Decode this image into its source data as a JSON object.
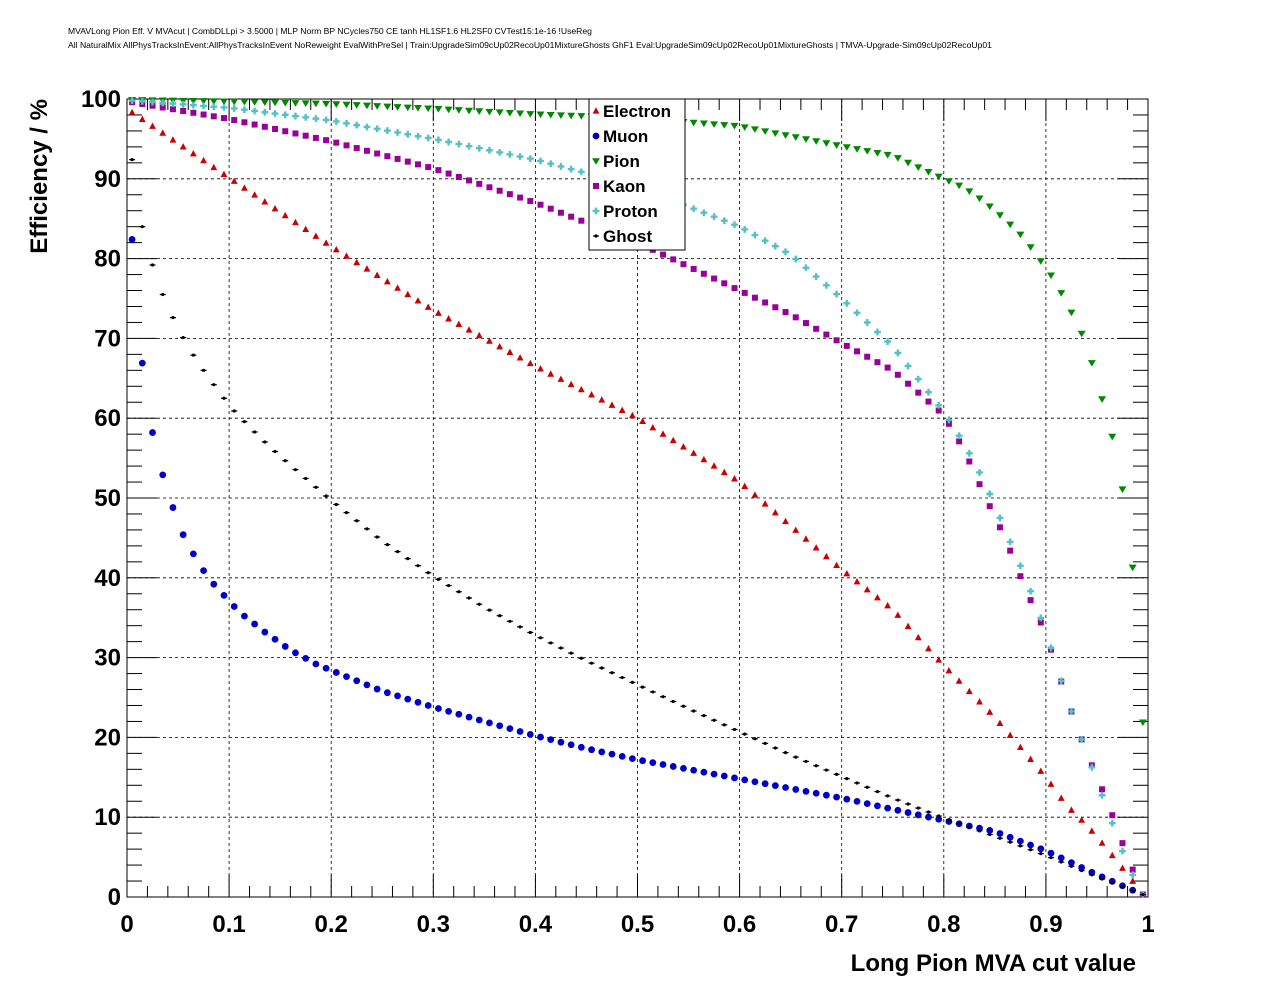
{
  "title_lines": [
    "MVAVLong Pion Eff. V MVAcut | CombDLLpi > 3.5000 | MLP Norm BP NCycles750 CE tanh HL1SF1.6 HL2SF0 CVTest15:1e-16 !UseReg",
    "All NaturalMix AllPhysTracksInEvent:AllPhysTracksInEvent NoReweight EvalWithPreSel | Train:UpgradeSim09cUp02RecoUp01MixtureGhosts GhF1 Eval:UpgradeSim09cUp02RecoUp01MixtureGhosts | TMVA-Upgrade-Sim09cUp02RecoUp01"
  ],
  "chart_data": {
    "type": "scatter",
    "xlabel": "Long Pion MVA cut value",
    "ylabel": "Efficiency / %",
    "xlim": [
      0,
      1
    ],
    "ylim": [
      0,
      100
    ],
    "x_ticks": [
      "0",
      "0.1",
      "0.2",
      "0.3",
      "0.4",
      "0.5",
      "0.6",
      "0.7",
      "0.8",
      "0.9",
      "1"
    ],
    "y_ticks": [
      "0",
      "10",
      "20",
      "30",
      "40",
      "50",
      "60",
      "70",
      "80",
      "90",
      "100"
    ],
    "grid": true,
    "legend_position": "top-center",
    "series": [
      {
        "name": "Electron",
        "color": "#cc0000",
        "marker": "triangle-up",
        "points": [
          [
            0.005,
            98.3
          ],
          [
            0.2,
            81.5
          ],
          [
            0.3,
            73.5
          ],
          [
            0.4,
            66.5
          ],
          [
            0.5,
            60.0
          ],
          [
            0.6,
            52.0
          ],
          [
            0.7,
            41.0
          ],
          [
            0.75,
            36.0
          ],
          [
            0.8,
            29.0
          ],
          [
            0.85,
            22.5
          ],
          [
            0.88,
            18.0
          ],
          [
            0.9,
            15.0
          ],
          [
            0.92,
            11.5
          ],
          [
            0.94,
            9.0
          ],
          [
            0.96,
            6.0
          ],
          [
            0.98,
            2.8
          ],
          [
            0.995,
            0.3
          ]
        ]
      },
      {
        "name": "Muon",
        "color": "#0000cc",
        "marker": "circle",
        "points": [
          [
            0.005,
            82.4
          ],
          [
            0.015,
            66.9
          ],
          [
            0.025,
            58.2
          ],
          [
            0.035,
            52.9
          ],
          [
            0.045,
            48.8
          ],
          [
            0.055,
            45.4
          ],
          [
            0.065,
            43.0
          ],
          [
            0.075,
            40.9
          ],
          [
            0.085,
            39.2
          ],
          [
            0.095,
            37.8
          ],
          [
            0.105,
            36.4
          ],
          [
            0.115,
            35.2
          ],
          [
            0.125,
            34.2
          ],
          [
            0.135,
            33.2
          ],
          [
            0.145,
            32.3
          ],
          [
            0.155,
            31.4
          ],
          [
            0.165,
            30.6
          ],
          [
            0.175,
            29.9
          ],
          [
            0.185,
            29.2
          ],
          [
            0.2,
            28.4
          ],
          [
            0.25,
            25.8
          ],
          [
            0.3,
            23.8
          ],
          [
            0.35,
            22.0
          ],
          [
            0.4,
            20.2
          ],
          [
            0.45,
            18.6
          ],
          [
            0.5,
            17.2
          ],
          [
            0.55,
            16.0
          ],
          [
            0.6,
            14.8
          ],
          [
            0.65,
            13.6
          ],
          [
            0.7,
            12.4
          ],
          [
            0.75,
            11.0
          ],
          [
            0.8,
            9.6
          ],
          [
            0.85,
            8.2
          ],
          [
            0.9,
            5.8
          ],
          [
            0.95,
            2.8
          ],
          [
            0.995,
            0.3
          ]
        ]
      },
      {
        "name": "Pion",
        "color": "#008800",
        "marker": "triangle-down",
        "points": [
          [
            0.005,
            99.9
          ],
          [
            0.1,
            99.7
          ],
          [
            0.2,
            99.4
          ],
          [
            0.3,
            98.8
          ],
          [
            0.4,
            98.1
          ],
          [
            0.5,
            97.6
          ],
          [
            0.6,
            96.6
          ],
          [
            0.7,
            94.1
          ],
          [
            0.75,
            92.9
          ],
          [
            0.8,
            90.0
          ],
          [
            0.82,
            88.9
          ],
          [
            0.84,
            87.1
          ],
          [
            0.86,
            84.9
          ],
          [
            0.88,
            82.4
          ],
          [
            0.89,
            80.5
          ],
          [
            0.9,
            78.9
          ],
          [
            0.91,
            76.9
          ],
          [
            0.92,
            74.5
          ],
          [
            0.93,
            72.0
          ],
          [
            0.94,
            69.2
          ],
          [
            0.955,
            62.4
          ],
          [
            0.965,
            57.7
          ],
          [
            0.975,
            51.1
          ],
          [
            0.985,
            41.3
          ],
          [
            0.995,
            21.9
          ]
        ]
      },
      {
        "name": "Kaon",
        "color": "#990099",
        "marker": "square",
        "points": [
          [
            0.005,
            99.6
          ],
          [
            0.1,
            97.5
          ],
          [
            0.2,
            94.7
          ],
          [
            0.3,
            91.3
          ],
          [
            0.4,
            87.0
          ],
          [
            0.5,
            82.0
          ],
          [
            0.6,
            76.0
          ],
          [
            0.65,
            73.0
          ],
          [
            0.7,
            69.4
          ],
          [
            0.75,
            66.0
          ],
          [
            0.8,
            60.4
          ],
          [
            0.82,
            56.0
          ],
          [
            0.84,
            50.3
          ],
          [
            0.86,
            45.0
          ],
          [
            0.88,
            38.6
          ],
          [
            0.9,
            33.0
          ],
          [
            0.92,
            25.0
          ],
          [
            0.94,
            18.0
          ],
          [
            0.96,
            12.0
          ],
          [
            0.98,
            5.0
          ],
          [
            0.995,
            0.3
          ]
        ]
      },
      {
        "name": "Proton",
        "color": "#55c0c8",
        "marker": "cross",
        "points": [
          [
            0.005,
            99.8
          ],
          [
            0.1,
            98.9
          ],
          [
            0.2,
            97.3
          ],
          [
            0.3,
            95.0
          ],
          [
            0.4,
            92.4
          ],
          [
            0.5,
            89.0
          ],
          [
            0.6,
            84.0
          ],
          [
            0.65,
            80.5
          ],
          [
            0.7,
            75.0
          ],
          [
            0.75,
            69.0
          ],
          [
            0.8,
            60.8
          ],
          [
            0.82,
            56.8
          ],
          [
            0.84,
            52.0
          ],
          [
            0.86,
            46.0
          ],
          [
            0.88,
            40.0
          ],
          [
            0.9,
            33.3
          ],
          [
            0.92,
            25.0
          ],
          [
            0.94,
            18.0
          ],
          [
            0.96,
            11.0
          ],
          [
            0.98,
            4.0
          ],
          [
            0.995,
            0.3
          ]
        ]
      },
      {
        "name": "Ghost",
        "color": "#000000",
        "marker": "dot",
        "points": [
          [
            0.005,
            92.4
          ],
          [
            0.015,
            84.0
          ],
          [
            0.025,
            79.2
          ],
          [
            0.035,
            75.5
          ],
          [
            0.045,
            72.6
          ],
          [
            0.055,
            70.1
          ],
          [
            0.065,
            67.9
          ],
          [
            0.075,
            66.0
          ],
          [
            0.085,
            64.2
          ],
          [
            0.095,
            62.5
          ],
          [
            0.105,
            60.9
          ],
          [
            0.12,
            58.9
          ],
          [
            0.14,
            56.4
          ],
          [
            0.16,
            54.1
          ],
          [
            0.18,
            51.9
          ],
          [
            0.2,
            49.7
          ],
          [
            0.25,
            44.6
          ],
          [
            0.3,
            40.2
          ],
          [
            0.35,
            36.3
          ],
          [
            0.4,
            32.8
          ],
          [
            0.45,
            29.6
          ],
          [
            0.5,
            26.6
          ],
          [
            0.55,
            23.6
          ],
          [
            0.6,
            20.7
          ],
          [
            0.65,
            17.8
          ],
          [
            0.7,
            15.1
          ],
          [
            0.75,
            12.4
          ],
          [
            0.8,
            9.9
          ],
          [
            0.85,
            7.6
          ],
          [
            0.9,
            5.2
          ],
          [
            0.95,
            2.5
          ],
          [
            0.995,
            0.3
          ]
        ]
      }
    ]
  }
}
